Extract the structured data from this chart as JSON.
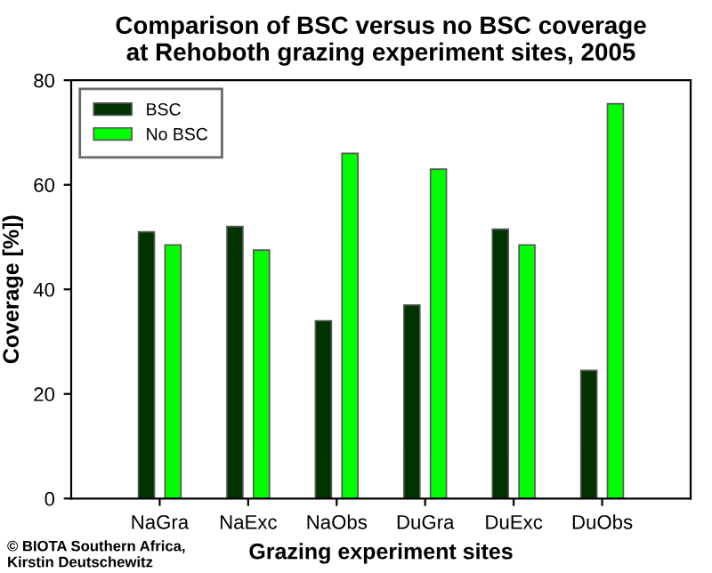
{
  "chart_data": {
    "type": "bar",
    "title": "Comparison of BSC versus no BSC coverage\nat Rehoboth grazing experiment sites, 2005",
    "xlabel": "Grazing experiment sites",
    "ylabel": "Coverage [%])",
    "categories": [
      "NaGra",
      "NaExc",
      "NaObs",
      "DuGra",
      "DuExc",
      "DuObs"
    ],
    "series": [
      {
        "name": "BSC",
        "color": "#003300",
        "values": [
          51,
          52,
          34,
          37,
          51.5,
          24.5
        ]
      },
      {
        "name": "No BSC",
        "color": "#00ff00",
        "values": [
          48.5,
          47.5,
          66,
          63,
          48.5,
          75.5
        ]
      }
    ],
    "ylim": [
      0,
      80
    ],
    "yticks": [
      0,
      20,
      40,
      60,
      80
    ],
    "grid": false,
    "legend": "top left",
    "annotations": [
      "© BIOTA Southern Africa,\nKirstin Deutschewitz"
    ]
  }
}
